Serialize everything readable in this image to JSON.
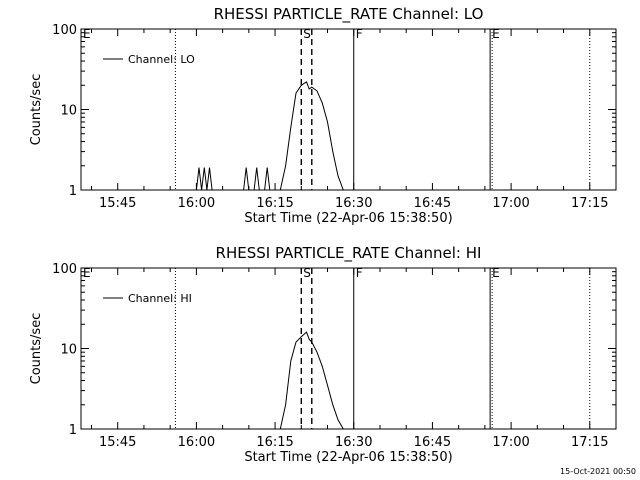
{
  "chart_data": [
    {
      "type": "line",
      "title": "RHESSI PARTICLE_RATE Channel: LO",
      "xlabel": "Start Time (22-Apr-06 15:38:50)",
      "ylabel": "Counts/sec",
      "yscale": "log",
      "xlim": [
        "15:38",
        "17:20"
      ],
      "ylim": [
        1,
        100
      ],
      "x_ticks": [
        "15:45",
        "16:00",
        "16:15",
        "16:30",
        "16:45",
        "17:00",
        "17:15"
      ],
      "y_ticks": [
        "1",
        "10",
        "100"
      ],
      "legend": "top-left",
      "series": [
        {
          "name": "Channel: LO",
          "x": [
            "15:38",
            "16:00",
            "16:00:30",
            "16:01",
            "16:01:30",
            "16:02",
            "16:02:30",
            "16:03",
            "16:09",
            "16:09:30",
            "16:10",
            "16:11",
            "16:11:30",
            "16:12",
            "16:13",
            "16:13:30",
            "16:14",
            "16:16",
            "16:17",
            "16:18",
            "16:19",
            "16:20",
            "16:20:30",
            "16:21",
            "16:21:30",
            "16:22",
            "16:23",
            "16:24",
            "16:25",
            "16:26",
            "16:27",
            "16:28",
            "16:29",
            "17:20"
          ],
          "values": [
            1,
            1,
            1.9,
            1,
            1.9,
            1,
            1.9,
            1,
            1,
            1.9,
            1,
            1,
            1.9,
            1,
            1,
            1.9,
            1,
            1,
            2,
            6,
            16,
            20,
            21,
            22,
            18,
            19,
            17,
            12,
            7,
            3,
            1.5,
            1,
            1,
            1
          ]
        }
      ],
      "annotations": [
        {
          "text": "E",
          "x": "15:38",
          "style": "dotted"
        },
        {
          "text": "",
          "x": "15:56",
          "style": "dotted"
        },
        {
          "text": "S",
          "x": "16:20",
          "style": "dashed"
        },
        {
          "text": "",
          "x": "16:22",
          "style": "dashed"
        },
        {
          "text": "F",
          "x": "16:30",
          "style": "solid"
        },
        {
          "text": "E",
          "x": "16:56",
          "style": "solid+dotted"
        },
        {
          "text": "",
          "x": "17:15",
          "style": "dotted"
        }
      ]
    },
    {
      "type": "line",
      "title": "RHESSI PARTICLE_RATE Channel: HI",
      "xlabel": "Start Time (22-Apr-06 15:38:50)",
      "ylabel": "Counts/sec",
      "yscale": "log",
      "xlim": [
        "15:38",
        "17:20"
      ],
      "ylim": [
        1,
        100
      ],
      "x_ticks": [
        "15:45",
        "16:00",
        "16:15",
        "16:30",
        "16:45",
        "17:00",
        "17:15"
      ],
      "y_ticks": [
        "1",
        "10",
        "100"
      ],
      "legend": "top-left",
      "series": [
        {
          "name": "Channel: HI",
          "x": [
            "15:38",
            "16:16",
            "16:17",
            "16:18",
            "16:19",
            "16:20",
            "16:21",
            "16:21:30",
            "16:22",
            "16:23",
            "16:24",
            "16:25",
            "16:26",
            "16:27",
            "16:28",
            "16:29",
            "17:20"
          ],
          "values": [
            1,
            1,
            2,
            7,
            12,
            14,
            16,
            13,
            12,
            9,
            6,
            3.5,
            2,
            1.3,
            1,
            1,
            1
          ]
        }
      ],
      "annotations": [
        {
          "text": "E",
          "x": "15:38",
          "style": "dotted"
        },
        {
          "text": "",
          "x": "15:56",
          "style": "dotted"
        },
        {
          "text": "S",
          "x": "16:20",
          "style": "dashed"
        },
        {
          "text": "",
          "x": "16:22",
          "style": "dashed"
        },
        {
          "text": "F",
          "x": "16:30",
          "style": "solid"
        },
        {
          "text": "E",
          "x": "16:56",
          "style": "solid+dotted"
        },
        {
          "text": "",
          "x": "17:15",
          "style": "dotted"
        }
      ]
    }
  ],
  "footer": {
    "timestamp": "15-Oct-2021 00:50"
  }
}
